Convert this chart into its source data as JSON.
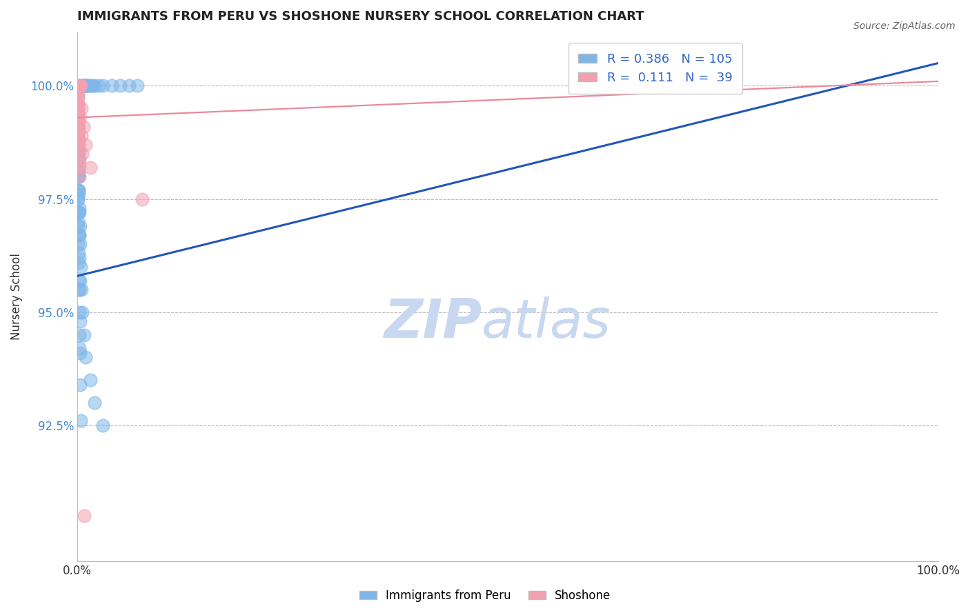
{
  "title": "IMMIGRANTS FROM PERU VS SHOSHONE NURSERY SCHOOL CORRELATION CHART",
  "source_text": "Source: ZipAtlas.com",
  "ylabel": "Nursery School",
  "xlim": [
    0.0,
    100.0
  ],
  "ylim": [
    89.5,
    101.2
  ],
  "yticks": [
    92.5,
    95.0,
    97.5,
    100.0
  ],
  "yticklabels": [
    "92.5%",
    "95.0%",
    "97.5%",
    "100.0%"
  ],
  "xtick_left": 0.0,
  "xtick_right": 100.0,
  "legend_label1": "Immigrants from Peru",
  "legend_label2": "Shoshone",
  "R1": 0.386,
  "N1": 105,
  "R2": 0.111,
  "N2": 39,
  "color_blue": "#7EB6E8",
  "color_pink": "#F4A0B0",
  "color_blue_line": "#2255BB",
  "color_pink_line": "#EE8899",
  "watermark_ZIP": "ZIP",
  "watermark_atlas": "atlas",
  "watermark_color": "#C8D8F0",
  "background_color": "#FFFFFF",
  "blue_points_x": [
    0.05,
    0.07,
    0.08,
    0.1,
    0.12,
    0.14,
    0.15,
    0.16,
    0.18,
    0.2,
    0.22,
    0.25,
    0.28,
    0.3,
    0.32,
    0.35,
    0.38,
    0.4,
    0.42,
    0.45,
    0.48,
    0.5,
    0.55,
    0.6,
    0.65,
    0.7,
    0.8,
    0.9,
    1.0,
    1.1,
    0.05,
    0.06,
    0.08,
    0.1,
    0.12,
    0.15,
    0.18,
    0.2,
    0.25,
    0.3,
    0.05,
    0.07,
    0.09,
    0.11,
    0.14,
    0.17,
    0.2,
    0.24,
    0.28,
    0.33,
    0.05,
    0.06,
    0.08,
    0.1,
    0.13,
    0.16,
    0.2,
    0.25,
    0.3,
    0.36,
    0.05,
    0.07,
    0.09,
    0.12,
    0.15,
    0.18,
    0.22,
    0.27,
    0.33,
    0.4,
    0.05,
    0.06,
    0.07,
    0.09,
    0.11,
    0.13,
    0.15,
    0.18,
    0.22,
    0.26,
    1.2,
    1.4,
    1.6,
    1.8,
    2.0,
    2.5,
    3.0,
    4.0,
    5.0,
    6.0,
    0.3,
    0.4,
    0.5,
    0.6,
    0.8,
    1.0,
    1.5,
    2.0,
    3.0,
    7.0,
    0.05,
    0.07,
    0.1,
    0.15,
    0.22
  ],
  "blue_points_y": [
    100.0,
    100.0,
    100.0,
    100.0,
    100.0,
    100.0,
    100.0,
    100.0,
    100.0,
    100.0,
    100.0,
    100.0,
    100.0,
    100.0,
    100.0,
    100.0,
    100.0,
    100.0,
    100.0,
    100.0,
    100.0,
    100.0,
    100.0,
    100.0,
    100.0,
    100.0,
    100.0,
    100.0,
    100.0,
    100.0,
    99.5,
    99.3,
    99.1,
    98.9,
    98.6,
    98.3,
    98.0,
    97.7,
    97.3,
    96.9,
    99.2,
    99.0,
    98.7,
    98.4,
    98.0,
    97.6,
    97.2,
    96.7,
    96.2,
    95.7,
    98.8,
    98.5,
    98.1,
    97.7,
    97.2,
    96.7,
    96.1,
    95.5,
    94.8,
    94.1,
    98.4,
    98.0,
    97.5,
    96.9,
    96.3,
    95.7,
    95.0,
    94.2,
    93.4,
    92.6,
    99.8,
    99.6,
    99.4,
    99.1,
    98.8,
    98.5,
    98.1,
    97.7,
    97.2,
    96.7,
    100.0,
    100.0,
    100.0,
    100.0,
    100.0,
    100.0,
    100.0,
    100.0,
    100.0,
    100.0,
    96.5,
    96.0,
    95.5,
    95.0,
    94.5,
    94.0,
    93.5,
    93.0,
    92.5,
    100.0,
    97.5,
    97.0,
    96.5,
    95.5,
    94.5
  ],
  "pink_points_x": [
    0.05,
    0.08,
    0.1,
    0.13,
    0.16,
    0.2,
    0.25,
    0.3,
    0.35,
    0.4,
    0.05,
    0.08,
    0.12,
    0.16,
    0.21,
    0.27,
    0.05,
    0.09,
    0.13,
    0.18,
    0.05,
    0.08,
    0.12,
    0.17,
    0.23,
    0.05,
    0.09,
    0.14,
    0.2,
    0.27,
    0.5,
    0.7,
    1.0,
    1.5,
    7.5,
    0.35,
    0.45,
    0.6,
    0.8
  ],
  "pink_points_y": [
    100.0,
    100.0,
    100.0,
    100.0,
    100.0,
    100.0,
    100.0,
    100.0,
    100.0,
    100.0,
    99.6,
    99.3,
    99.0,
    98.7,
    98.4,
    98.0,
    99.8,
    99.5,
    99.1,
    98.8,
    99.7,
    99.4,
    99.0,
    98.6,
    98.2,
    99.9,
    99.6,
    99.2,
    98.8,
    98.3,
    99.5,
    99.1,
    98.7,
    98.2,
    97.5,
    99.3,
    98.9,
    98.5,
    90.5
  ],
  "blue_line_x0": 0.0,
  "blue_line_y0": 95.8,
  "blue_line_x1": 100.0,
  "blue_line_y1": 100.5,
  "pink_line_x0": 0.0,
  "pink_line_y0": 99.3,
  "pink_line_x1": 100.0,
  "pink_line_y1": 100.1
}
